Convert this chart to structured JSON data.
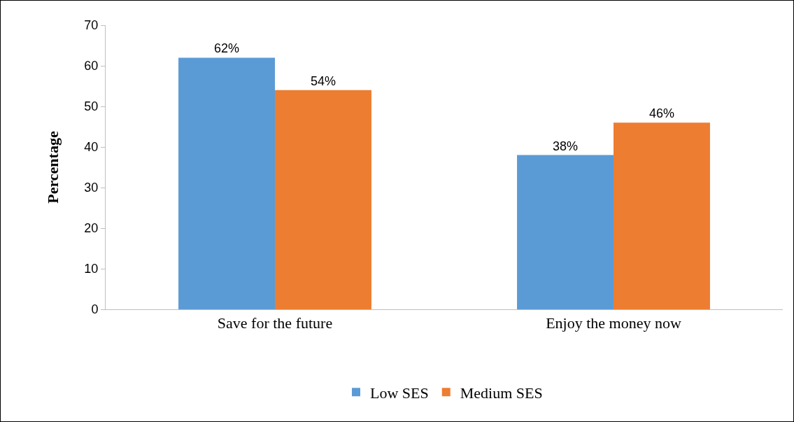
{
  "chart_data": {
    "type": "bar",
    "ylabel": "Percentage",
    "categories": [
      "Save for the future",
      "Enjoy the money now"
    ],
    "series": [
      {
        "name": "Low SES",
        "color": "#5b9bd5",
        "values": [
          62,
          38
        ],
        "value_labels": [
          "62%",
          "38%"
        ]
      },
      {
        "name": "Medium SES",
        "color": "#ed7d31",
        "values": [
          54,
          46
        ],
        "value_labels": [
          "54%",
          "46%"
        ]
      }
    ],
    "ylim": [
      0,
      70
    ],
    "yticks": [
      0,
      10,
      20,
      30,
      40,
      50,
      60,
      70
    ],
    "grid": false,
    "legend": "bottom"
  }
}
